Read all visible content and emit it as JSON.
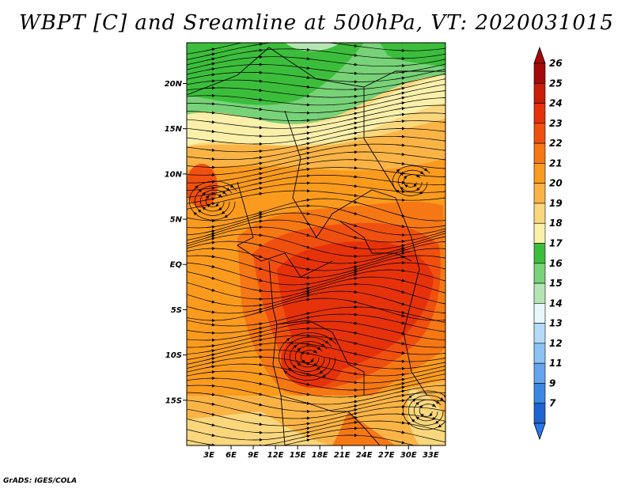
{
  "title": "WBPT [C] and Sreamline at 500hPa, VT: 2020031015",
  "footer": "GrADS: IGES/COLA",
  "map": {
    "lon_range": [
      0,
      35
    ],
    "lat_range": [
      -20,
      24.5
    ],
    "lat_ticks": [
      {
        "value": 20,
        "label": "20N"
      },
      {
        "value": 15,
        "label": "15N"
      },
      {
        "value": 10,
        "label": "10N"
      },
      {
        "value": 5,
        "label": "5N"
      },
      {
        "value": 0,
        "label": "EQ"
      },
      {
        "value": -5,
        "label": "5S"
      },
      {
        "value": -10,
        "label": "10S"
      },
      {
        "value": -15,
        "label": "15S"
      }
    ],
    "lon_ticks": [
      {
        "value": 3,
        "label": "3E"
      },
      {
        "value": 6,
        "label": "6E"
      },
      {
        "value": 9,
        "label": "9E"
      },
      {
        "value": 12,
        "label": "12E"
      },
      {
        "value": 15,
        "label": "15E"
      },
      {
        "value": 18,
        "label": "18E"
      },
      {
        "value": 21,
        "label": "21E"
      },
      {
        "value": 24,
        "label": "24E"
      },
      {
        "value": 27,
        "label": "27E"
      },
      {
        "value": 30,
        "label": "30E"
      },
      {
        "value": 33,
        "label": "33E"
      }
    ]
  },
  "colorbar": {
    "levels": [
      {
        "label": "26",
        "color": "#a50a0a"
      },
      {
        "label": "25",
        "color": "#c81e0a"
      },
      {
        "label": "24",
        "color": "#e6320a"
      },
      {
        "label": "23",
        "color": "#f0500f"
      },
      {
        "label": "22",
        "color": "#f57814"
      },
      {
        "label": "21",
        "color": "#fa9b1e"
      },
      {
        "label": "20",
        "color": "#fab446"
      },
      {
        "label": "19",
        "color": "#fad77d"
      },
      {
        "label": "18",
        "color": "#faf0aa"
      },
      {
        "label": "17",
        "color": "#3cbe3c"
      },
      {
        "label": "16",
        "color": "#78d278"
      },
      {
        "label": "15",
        "color": "#b4e6b4"
      },
      {
        "label": "14",
        "color": "#e6f8fa"
      },
      {
        "label": "13",
        "color": "#b4dcfa"
      },
      {
        "label": "12",
        "color": "#8cc3f5"
      },
      {
        "label": "11",
        "color": "#64a5f0"
      },
      {
        "label": "9",
        "color": "#3c87e6"
      },
      {
        "label": "7",
        "color": "#1e64d2"
      }
    ],
    "bottom_color": "#2878e6"
  }
}
